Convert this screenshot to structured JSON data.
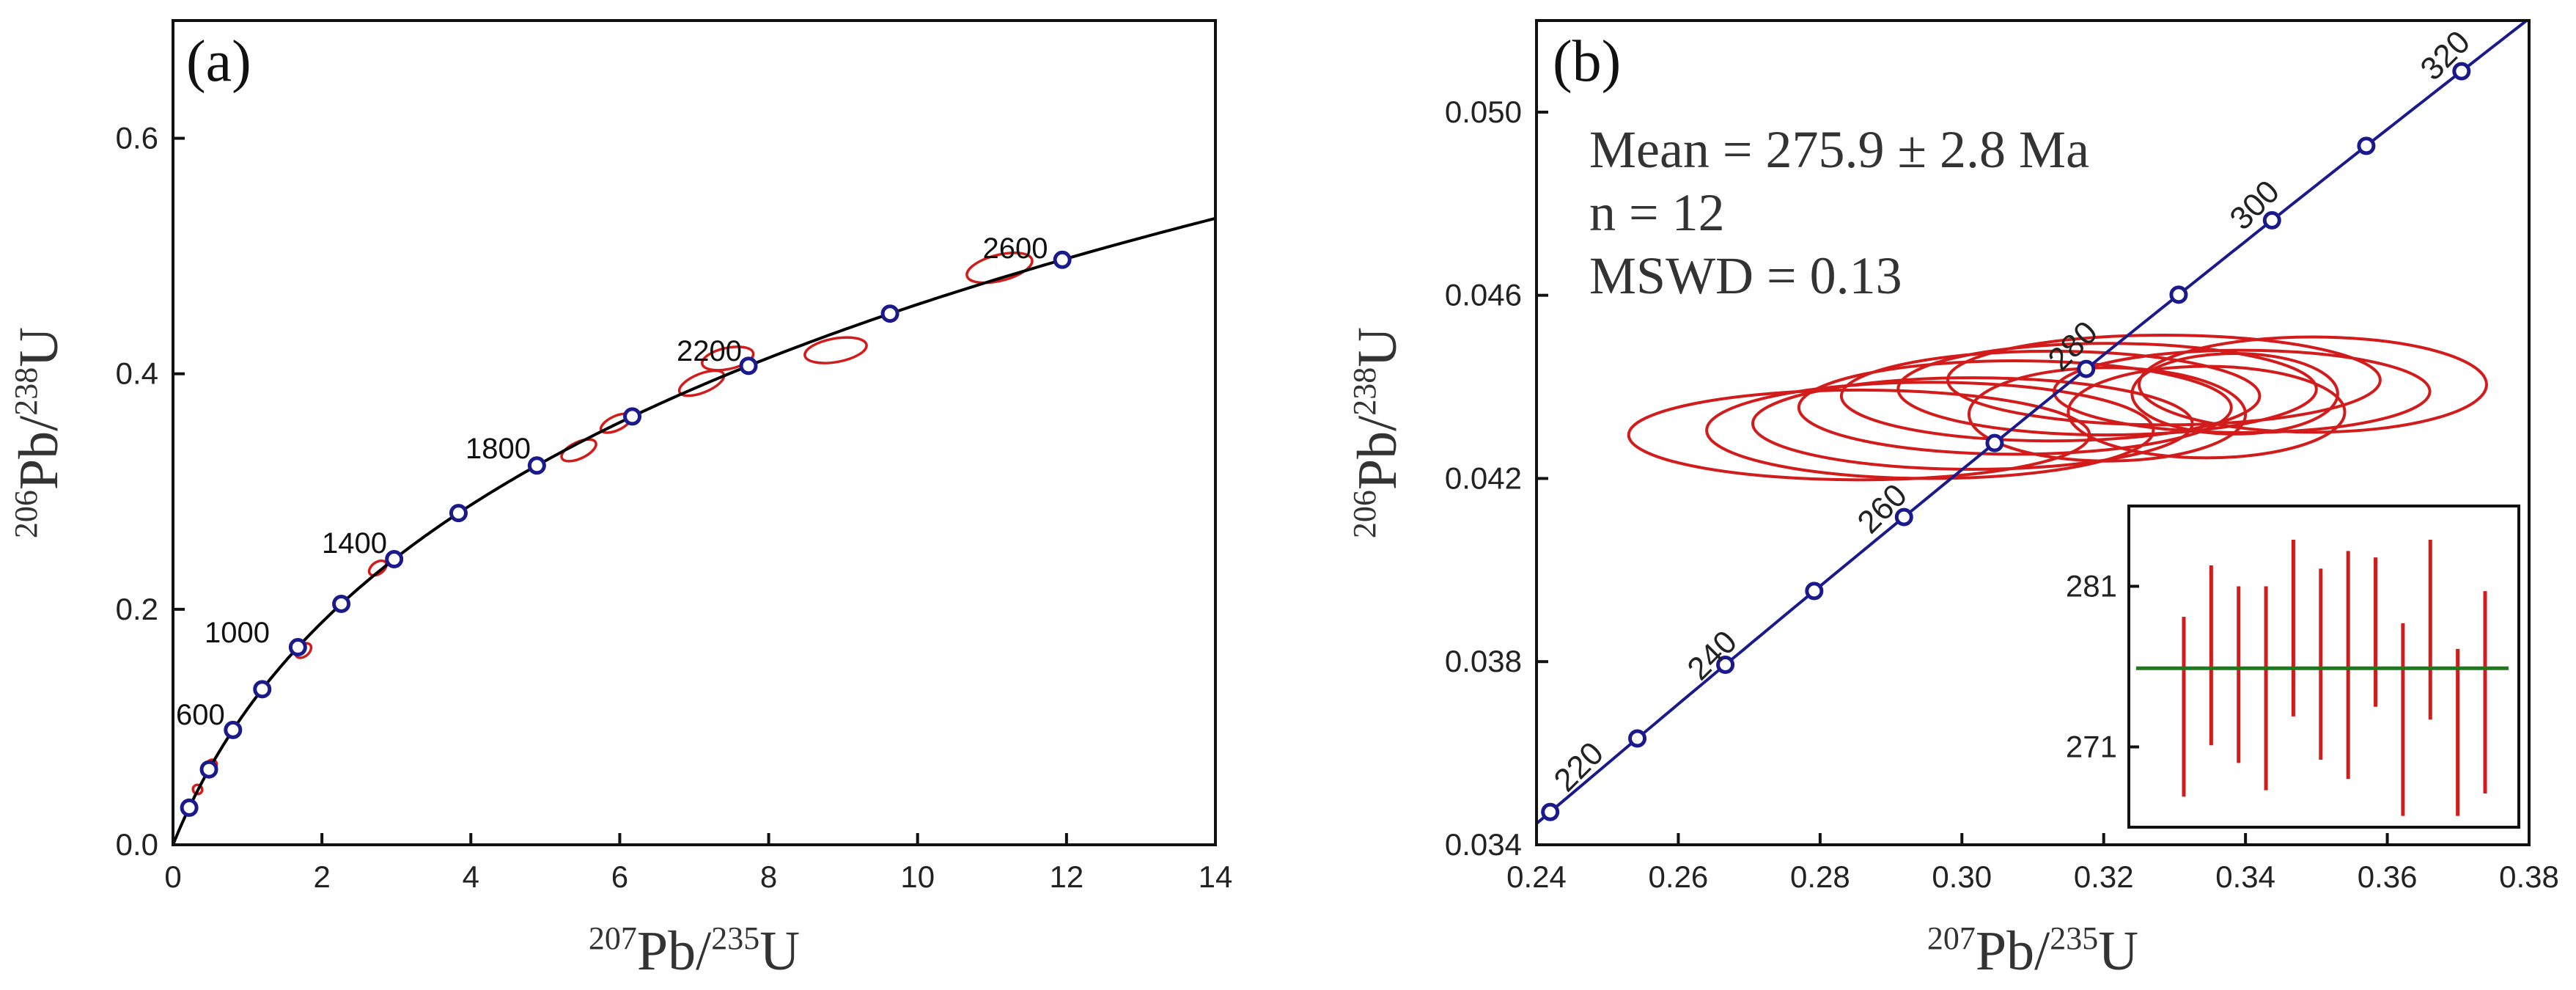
{
  "chart_data": [
    {
      "id": "a",
      "type": "scatter",
      "subtype": "concordia",
      "panel_label": "(a)",
      "xlabel": {
        "mass1": "207",
        "el1": "Pb",
        "mass2": "235",
        "el2": "U"
      },
      "ylabel": {
        "mass1": "206",
        "el1": "Pb",
        "mass2": "238",
        "el2": "U"
      },
      "xlim": [
        0,
        14
      ],
      "ylim": [
        0,
        0.7
      ],
      "xticks": [
        0,
        2,
        4,
        6,
        8,
        10,
        12,
        14
      ],
      "xtick_labels": [
        "0",
        "2",
        "4",
        "6",
        "8",
        "10",
        "12",
        "14"
      ],
      "yticks": [
        0.0,
        0.2,
        0.4,
        0.6
      ],
      "ytick_labels": [
        "0.0",
        "0.2",
        "0.4",
        "0.6"
      ],
      "concordia_color": "#000000",
      "marker_color": "#1a1a8c",
      "ellipse_color": "#d21c1c",
      "concordia_markers_ma": [
        200,
        400,
        600,
        800,
        1000,
        1200,
        1400,
        1600,
        1800,
        2000,
        2200,
        2400,
        2600
      ],
      "age_labels": [
        {
          "age": 600,
          "text": "600",
          "anchor": "x:0.0,y:0.095",
          "placement": "left"
        },
        {
          "age": 1000,
          "text": "1000",
          "placement": "left"
        },
        {
          "age": 1400,
          "text": "1400",
          "placement": "left"
        },
        {
          "age": 1800,
          "text": "1800",
          "placement": "left"
        },
        {
          "age": 2200,
          "text": "2200",
          "placement": "left"
        },
        {
          "age": 2600,
          "text": "2600",
          "placement": "above"
        }
      ],
      "ellipses": [
        {
          "x": 0.33,
          "y": 0.047,
          "sx": 0.06,
          "sy": 0.004,
          "angle": 50
        },
        {
          "x": 0.52,
          "y": 0.068,
          "sx": 0.07,
          "sy": 0.004,
          "angle": 50
        },
        {
          "x": 1.75,
          "y": 0.165,
          "sx": 0.12,
          "sy": 0.005,
          "angle": 40
        },
        {
          "x": 2.75,
          "y": 0.235,
          "sx": 0.13,
          "sy": 0.005,
          "angle": 35
        },
        {
          "x": 5.45,
          "y": 0.335,
          "sx": 0.25,
          "sy": 0.007,
          "angle": 25
        },
        {
          "x": 5.95,
          "y": 0.358,
          "sx": 0.22,
          "sy": 0.006,
          "angle": 25
        },
        {
          "x": 7.1,
          "y": 0.392,
          "sx": 0.32,
          "sy": 0.008,
          "angle": 22
        },
        {
          "x": 7.45,
          "y": 0.413,
          "sx": 0.35,
          "sy": 0.009,
          "angle": 12
        },
        {
          "x": 8.9,
          "y": 0.42,
          "sx": 0.42,
          "sy": 0.01,
          "angle": 10
        },
        {
          "x": 11.1,
          "y": 0.49,
          "sx": 0.45,
          "sy": 0.011,
          "angle": 14
        }
      ]
    },
    {
      "id": "b",
      "type": "scatter",
      "subtype": "concordia",
      "panel_label": "(b)",
      "xlabel": {
        "mass1": "207",
        "el1": "Pb",
        "mass2": "235",
        "el2": "U"
      },
      "ylabel": {
        "mass1": "206",
        "el1": "Pb",
        "mass2": "238",
        "el2": "U"
      },
      "xlim": [
        0.24,
        0.38
      ],
      "ylim": [
        0.034,
        0.052
      ],
      "xticks": [
        0.24,
        0.26,
        0.28,
        0.3,
        0.32,
        0.34,
        0.36,
        0.38
      ],
      "xtick_labels": [
        "0.24",
        "0.26",
        "0.28",
        "0.30",
        "0.32",
        "0.34",
        "0.36",
        "0.38"
      ],
      "yticks": [
        0.034,
        0.038,
        0.042,
        0.046,
        0.05
      ],
      "ytick_labels": [
        "0.034",
        "0.038",
        "0.042",
        "0.046",
        "0.050"
      ],
      "concordia_color": "#1a1a8c",
      "marker_color": "#1a1a8c",
      "ellipse_color": "#d21c1c",
      "concordia_markers_ma": [
        220,
        230,
        240,
        250,
        260,
        270,
        280,
        290,
        300,
        310,
        320
      ],
      "age_labels": [
        {
          "age": 220,
          "text": "220"
        },
        {
          "age": 240,
          "text": "240"
        },
        {
          "age": 260,
          "text": "260"
        },
        {
          "age": 280,
          "text": "280"
        },
        {
          "age": 300,
          "text": "300"
        },
        {
          "age": 320,
          "text": "320"
        }
      ],
      "stats": {
        "mean": "Mean = 275.9 ± 2.8 Ma",
        "n": "n = 12",
        "mswd": "MSWD = 0.13"
      },
      "ellipses": [
        {
          "x": 0.2855,
          "y": 0.04295,
          "sx": 0.0325,
          "sy": 0.00098
        },
        {
          "x": 0.2955,
          "y": 0.04305,
          "sx": 0.0315,
          "sy": 0.00105
        },
        {
          "x": 0.3015,
          "y": 0.0432,
          "sx": 0.031,
          "sy": 0.001
        },
        {
          "x": 0.3075,
          "y": 0.04355,
          "sx": 0.0305,
          "sy": 0.00102
        },
        {
          "x": 0.3125,
          "y": 0.0438,
          "sx": 0.0295,
          "sy": 0.00098
        },
        {
          "x": 0.3205,
          "y": 0.04395,
          "sx": 0.0295,
          "sy": 0.001
        },
        {
          "x": 0.3285,
          "y": 0.04415,
          "sx": 0.0305,
          "sy": 0.00098
        },
        {
          "x": 0.3395,
          "y": 0.0439,
          "sx": 0.0265,
          "sy": 0.0009
        },
        {
          "x": 0.3205,
          "y": 0.0434,
          "sx": 0.0195,
          "sy": 0.00102
        },
        {
          "x": 0.3345,
          "y": 0.04345,
          "sx": 0.0195,
          "sy": 0.001
        },
        {
          "x": 0.3495,
          "y": 0.04405,
          "sx": 0.0245,
          "sy": 0.00104
        },
        {
          "x": 0.3385,
          "y": 0.04385,
          "sx": 0.0145,
          "sy": 0.00088
        }
      ],
      "inset": {
        "type": "bar",
        "subtype": "error-bars",
        "ylim": [
          266,
          286
        ],
        "yticks": [
          271,
          281
        ],
        "ytick_labels": [
          "271",
          "281"
        ],
        "mean": 275.9,
        "mean_color": "#1b7a1b",
        "bar_color": "#d21c1c",
        "bars": [
          {
            "low": 267.9,
            "high": 279.1
          },
          {
            "low": 271.1,
            "high": 282.3
          },
          {
            "low": 270.0,
            "high": 281.0
          },
          {
            "low": 268.3,
            "high": 281.0
          },
          {
            "low": 272.9,
            "high": 283.9
          },
          {
            "low": 270.2,
            "high": 282.1
          },
          {
            "low": 269.0,
            "high": 283.2
          },
          {
            "low": 273.5,
            "high": 282.8
          },
          {
            "low": 266.7,
            "high": 278.7
          },
          {
            "low": 272.7,
            "high": 283.9
          },
          {
            "low": 266.7,
            "high": 277.1
          },
          {
            "low": 268.1,
            "high": 280.7
          }
        ]
      }
    }
  ]
}
